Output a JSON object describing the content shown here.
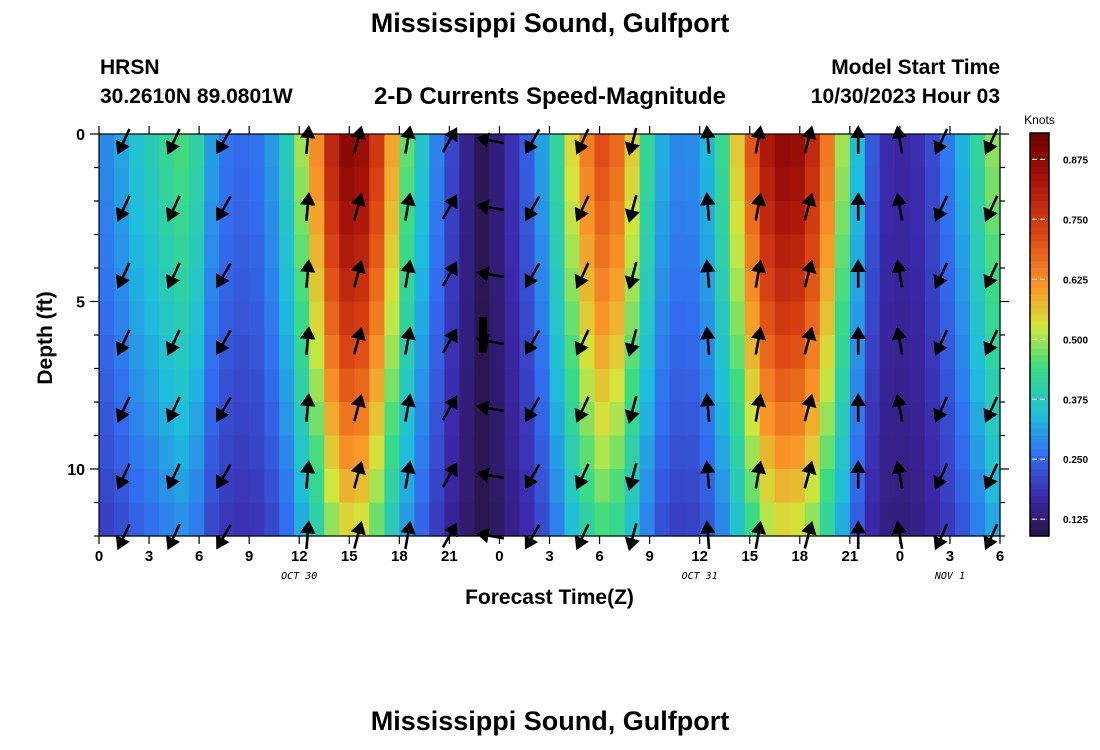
{
  "header": {
    "title": "Mississippi Sound, Gulfport",
    "station": "HRSN",
    "latlon": "30.2610N  89.0801W",
    "subtitle": "2-D Currents Speed-Magnitude",
    "model_label": "Model Start Time",
    "model_time": "10/30/2023 Hour 03"
  },
  "footer": {
    "title": "Mississippi Sound, Gulfport"
  },
  "chart_data": {
    "type": "heatmap",
    "title": "2-D Currents Speed-Magnitude",
    "xlabel": "Forecast Time(Z)",
    "ylabel": "Depth (ft)",
    "x_hours_range": [
      0,
      54
    ],
    "y_range": [
      0,
      12
    ],
    "xticks": {
      "hours": [
        0,
        3,
        6,
        9,
        12,
        15,
        18,
        21,
        24,
        27,
        30,
        33,
        36,
        39,
        42,
        45,
        48,
        51,
        54
      ],
      "labels": [
        "0",
        "3",
        "6",
        "9",
        "12",
        "15",
        "18",
        "21",
        "0",
        "3",
        "6",
        "9",
        "12",
        "15",
        "18",
        "21",
        "0",
        "3",
        "6"
      ]
    },
    "yticks": {
      "values": [
        0,
        5,
        10
      ],
      "labels": [
        "0",
        "5",
        "10"
      ]
    },
    "date_labels": [
      {
        "text": "OCT 30",
        "hour": 12
      },
      {
        "text": "OCT 31",
        "hour": 36
      },
      {
        "text": "NOV 1",
        "hour": 51
      }
    ],
    "colorbar": {
      "label": "Knots",
      "min": 0.09,
      "max": 0.93,
      "ticks": [
        0.125,
        0.25,
        0.375,
        0.5,
        0.625,
        0.75,
        0.875
      ],
      "tick_labels": [
        "0.125",
        "0.250",
        "0.375",
        "0.500",
        "0.625",
        "0.750",
        "0.875"
      ]
    },
    "speed_profile": {
      "hours": [
        0,
        1,
        2,
        3,
        4,
        5,
        6,
        7,
        8,
        9,
        10,
        11,
        12,
        13,
        14,
        15,
        16,
        17,
        18,
        19,
        20,
        21,
        22,
        23,
        24,
        25,
        26,
        27,
        28,
        29,
        30,
        31,
        32,
        33,
        34,
        35,
        36,
        37,
        38,
        39,
        40,
        41,
        42,
        43,
        44,
        45,
        46,
        47,
        48,
        49,
        50,
        51,
        52,
        53,
        54
      ],
      "surface_knots": [
        0.28,
        0.3,
        0.35,
        0.38,
        0.42,
        0.45,
        0.4,
        0.28,
        0.26,
        0.25,
        0.28,
        0.35,
        0.48,
        0.62,
        0.8,
        0.9,
        0.85,
        0.7,
        0.52,
        0.4,
        0.3,
        0.22,
        0.15,
        0.1,
        0.14,
        0.2,
        0.26,
        0.35,
        0.5,
        0.62,
        0.72,
        0.68,
        0.55,
        0.4,
        0.3,
        0.28,
        0.3,
        0.38,
        0.52,
        0.68,
        0.82,
        0.88,
        0.86,
        0.76,
        0.6,
        0.42,
        0.26,
        0.18,
        0.17,
        0.18,
        0.22,
        0.28,
        0.35,
        0.45,
        0.52
      ],
      "depth_factor_at_12ft": 0.55
    },
    "vectors": {
      "hours": [
        1.5,
        4.5,
        7.5,
        12.5,
        15.5,
        18.5,
        21,
        23.5,
        26,
        29,
        32,
        36.5,
        39.5,
        42.5,
        45.5,
        48,
        50.5,
        53.5
      ],
      "depths": [
        0.2,
        2.2,
        4.2,
        6.2,
        8.2,
        10.2,
        12
      ],
      "directions_deg": [
        205,
        205,
        210,
        5,
        15,
        10,
        30,
        280,
        210,
        205,
        195,
        355,
        10,
        15,
        0,
        350,
        205,
        205
      ]
    },
    "marker": {
      "hour": 23,
      "depth": 6
    }
  }
}
